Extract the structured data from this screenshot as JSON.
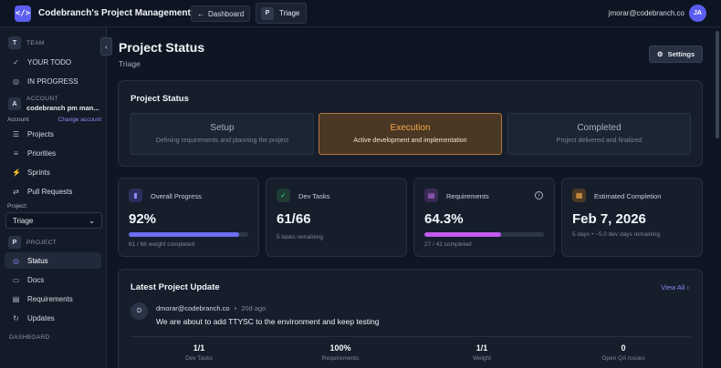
{
  "header": {
    "logo_glyph": "</>",
    "app_title": "Codebranch's Project Management Tool",
    "dashboard_label": "Dashboard",
    "back_glyph": "←",
    "breadcrumb_badge": "P",
    "breadcrumb_label": "Triage",
    "user_email": "jmorar@codebranch.co",
    "user_initials": "JA"
  },
  "sidebar": {
    "collapse_glyph": "‹",
    "team": {
      "badge": "T",
      "label": "TEAM"
    },
    "team_items": [
      {
        "label": "YOUR TODO",
        "icon": "✓"
      },
      {
        "label": "IN PROGRESS",
        "icon": "◎"
      }
    ],
    "account": {
      "badge": "A",
      "label": "ACCOUNT",
      "name": "codebranch pm man...",
      "row_label": "Account",
      "change_label": "Change account"
    },
    "account_items": [
      {
        "label": "Projects",
        "icon": "☰"
      },
      {
        "label": "Priorities",
        "icon": "≡"
      },
      {
        "label": "Sprints",
        "icon": "⚡"
      },
      {
        "label": "Pull Requests",
        "icon": "⇄"
      }
    ],
    "project_label": "Project:",
    "project_value": "Triage",
    "project_chevron": "⌄",
    "project": {
      "badge": "P",
      "label": "PROJECT"
    },
    "project_items": [
      {
        "label": "Status",
        "icon": "◎",
        "active": true
      },
      {
        "label": "Docs",
        "icon": "▭"
      },
      {
        "label": "Requirements",
        "icon": "▤"
      },
      {
        "label": "Updates",
        "icon": "↻"
      }
    ],
    "dashboard_label": "DASHBOARD"
  },
  "main": {
    "title": "Project Status",
    "subtitle": "Triage",
    "settings_label": "Settings",
    "settings_icon": "⚙",
    "status_card": {
      "title": "Project Status",
      "phases": [
        {
          "name": "Setup",
          "desc": "Defining requirements and planning the project",
          "current": false
        },
        {
          "name": "Execution",
          "desc": "Active development and implementation",
          "current": true
        },
        {
          "name": "Completed",
          "desc": "Project delivered and finalized",
          "current": false
        }
      ]
    },
    "stats": [
      {
        "label": "Overall Progress",
        "value": "92%",
        "note": "61 / 66 weight completed",
        "progress": 0.92,
        "icon": "▮",
        "icon_color": "#8b8df5",
        "icon_bg": "#2c2f5e",
        "bar_color": "#6c6ef2"
      },
      {
        "label": "Dev Tasks",
        "value": "61/66",
        "note": "5 tasks remaining",
        "icon": "✓",
        "icon_color": "#3ecf8e",
        "icon_bg": "#1f3b34"
      },
      {
        "label": "Requirements",
        "value": "64.3%",
        "note": "27 / 42 completed",
        "progress": 0.643,
        "icon": "▤",
        "icon_color": "#c07bf0",
        "icon_bg": "#3a2a55",
        "bar_color": "#c35bf0",
        "info": "i"
      },
      {
        "label": "Estimated Completion",
        "value": "Feb 7, 2026",
        "note": "5 days • ~5.0 dev days remaining",
        "icon": "▦",
        "icon_color": "#f3a945",
        "icon_bg": "#4a3724"
      }
    ],
    "update_card": {
      "title": "Latest Project Update",
      "view_all": "View All",
      "view_all_chevron": "›",
      "avatar": "D",
      "author": "dmorar@codebranch.co",
      "separator": "•",
      "time": "20d ago",
      "message": "We are about to add TTYSC to the environment and keep testing",
      "metrics": [
        {
          "value": "1/1",
          "label": "Dev Tasks"
        },
        {
          "value": "100%",
          "label": "Requirements"
        },
        {
          "value": "1/1",
          "label": "Weight"
        },
        {
          "value": "0",
          "label": "Open QA Issues"
        }
      ]
    }
  }
}
